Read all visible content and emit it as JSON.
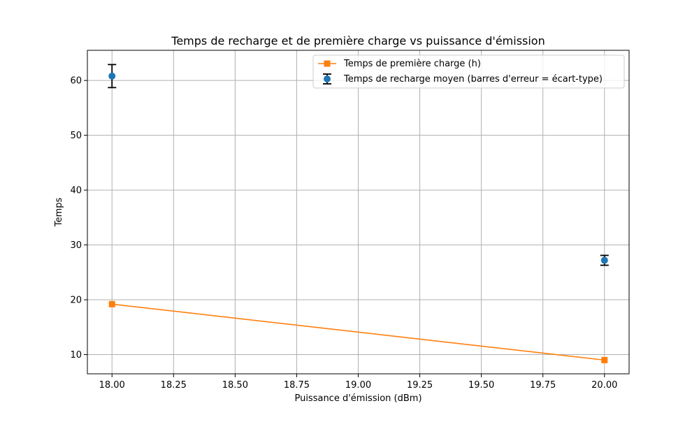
{
  "chart_data": {
    "type": "line",
    "title": "Temps de recharge et de première charge vs puissance d'émission",
    "xlabel": "Puissance d'émission (dBm)",
    "ylabel": "Temps",
    "xlim": [
      17.9,
      20.1
    ],
    "ylim": [
      6.5,
      65.5
    ],
    "grid": true,
    "legend_position": "top-right",
    "x_ticks": [
      18.0,
      18.25,
      18.5,
      18.75,
      19.0,
      19.25,
      19.5,
      19.75,
      20.0
    ],
    "x_tick_labels": [
      "18.00",
      "18.25",
      "18.50",
      "18.75",
      "19.00",
      "19.25",
      "19.50",
      "19.75",
      "20.00"
    ],
    "y_ticks": [
      10,
      20,
      30,
      40,
      50,
      60
    ],
    "y_tick_labels": [
      "10",
      "20",
      "30",
      "40",
      "50",
      "60"
    ],
    "series": [
      {
        "name": "Temps de première charge (h)",
        "kind": "line-square-markers",
        "color": "#ff7f0e",
        "x": [
          18.0,
          20.0
        ],
        "y": [
          19.2,
          9.0
        ]
      },
      {
        "name": "Temps de recharge moyen (barres d'erreur = écart-type)",
        "kind": "errorbar-circle-markers",
        "color": "#1f77b4",
        "errorbar_color": "#000000",
        "x": [
          18.0,
          20.0
        ],
        "y": [
          60.8,
          27.2
        ],
        "yerr": [
          2.1,
          0.9
        ]
      }
    ]
  }
}
